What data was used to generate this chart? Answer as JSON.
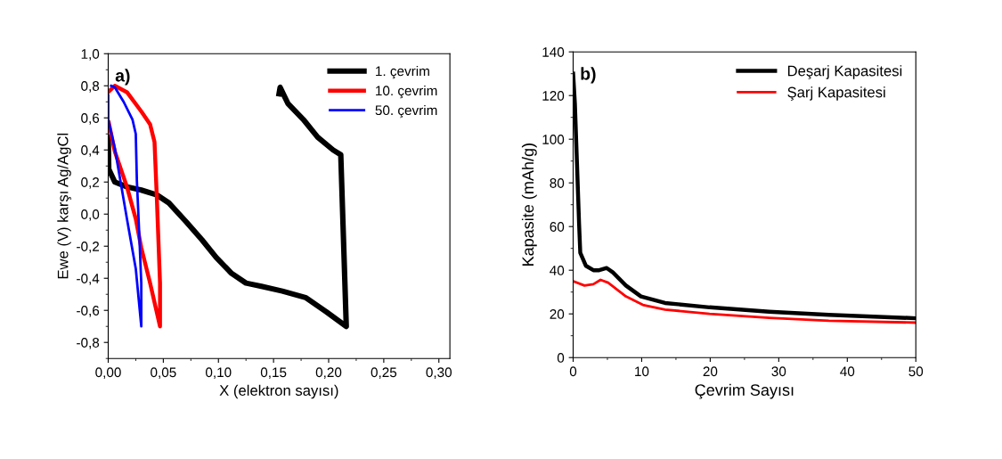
{
  "chart_data": [
    {
      "type": "line",
      "annotations": [
        "a)"
      ],
      "xlabel": "X (elektron sayısı)",
      "ylabel": "Ewe (V) karşı Ag/AgCl",
      "xlim": [
        0,
        0.31
      ],
      "ylim": [
        -0.9,
        1.0
      ],
      "xticks": [
        {
          "value": 0,
          "label": "0,00"
        },
        {
          "value": 0.05,
          "label": "0,05"
        },
        {
          "value": 0.1,
          "label": "0,10"
        },
        {
          "value": 0.15,
          "label": "0,15"
        },
        {
          "value": 0.2,
          "label": "0,20"
        },
        {
          "value": 0.25,
          "label": "0,25"
        },
        {
          "value": 0.3,
          "label": "0,30"
        }
      ],
      "yticks": [
        {
          "value": -0.8,
          "label": "-0,8"
        },
        {
          "value": -0.6,
          "label": "-0,6"
        },
        {
          "value": -0.4,
          "label": "-0,4"
        },
        {
          "value": -0.2,
          "label": "-0,2"
        },
        {
          "value": 0,
          "label": "0,0"
        },
        {
          "value": 0.2,
          "label": "0,2"
        },
        {
          "value": 0.4,
          "label": "0,4"
        },
        {
          "value": 0.6,
          "label": "0,6"
        },
        {
          "value": 0.8,
          "label": "0,8"
        },
        {
          "value": 1.0,
          "label": "1,0"
        }
      ],
      "legend": "top right",
      "grid": false,
      "marker": "none",
      "line_style": "solid",
      "series": [
        {
          "name": "1. çevrim",
          "color": "#000000",
          "x": [
            0,
            0.0005,
            0.006,
            0.017,
            0.03,
            0.044,
            0.055,
            0.071,
            0.085,
            0.098,
            0.112,
            0.125,
            0.139,
            0.158,
            0.179,
            0.198,
            0.216,
            0.211,
            0.204,
            0.19,
            0.177,
            0.163,
            0.156,
            0.155
          ],
          "values": [
            0.48,
            0.28,
            0.2,
            0.17,
            0.15,
            0.12,
            0.07,
            -0.05,
            -0.16,
            -0.27,
            -0.37,
            -0.43,
            -0.45,
            -0.48,
            -0.52,
            -0.61,
            -0.7,
            0.37,
            0.4,
            0.48,
            0.59,
            0.69,
            0.79,
            0.75
          ]
        },
        {
          "name": "10. çevrim",
          "color": "#ff0000",
          "x": [
            0,
            0.006,
            0.017,
            0.03,
            0.038,
            0.042,
            0.044,
            0.047,
            0.047,
            0.038,
            0.03,
            0.025,
            0.017,
            0.006,
            0.0005
          ],
          "values": [
            0.76,
            0.8,
            0.76,
            0.64,
            0.56,
            0.45,
            0.12,
            -0.43,
            -0.7,
            -0.43,
            -0.21,
            -0.03,
            0.17,
            0.39,
            0.57
          ]
        },
        {
          "name": "50. çevrim",
          "color": "#0000ff",
          "x": [
            0,
            0,
            0.006,
            0.017,
            0.025,
            0.03,
            0.03,
            0.028,
            0.026,
            0.025,
            0.022,
            0.014,
            0.006,
            0.0027
          ],
          "values": [
            0.74,
            0.59,
            0.41,
            -0.03,
            -0.34,
            -0.7,
            -0.43,
            -0.1,
            0.21,
            0.5,
            0.59,
            0.7,
            0.79,
            0.8
          ]
        }
      ]
    },
    {
      "type": "line",
      "annotations": [
        "b)"
      ],
      "xlabel": "Çevrim Sayısı",
      "ylabel": "Kapasite (mAh/g)",
      "xlim": [
        0,
        50
      ],
      "ylim": [
        0,
        140
      ],
      "xticks": [
        0,
        10,
        20,
        30,
        40,
        50
      ],
      "yticks": [
        0,
        20,
        40,
        60,
        80,
        100,
        120,
        140
      ],
      "legend": "top right",
      "grid": false,
      "marker": "none",
      "line_style": "solid",
      "series": [
        {
          "name": "Deşarj Kapasitesi",
          "color": "#000000",
          "x": [
            0,
            0.26,
            0.56,
            0.87,
            1.04,
            1.87,
            2.95,
            3.8,
            4.9,
            5.8,
            7.7,
            9.9,
            13.4,
            19.9,
            28.6,
            37.3,
            50
          ],
          "values": [
            130,
            116,
            89,
            61,
            48,
            42,
            40,
            40,
            41,
            39,
            33,
            28,
            25,
            23,
            21,
            19.6,
            18
          ]
        },
        {
          "name": "Şarj Kapasitesi",
          "color": "#ff0000",
          "x": [
            0,
            1.65,
            2.95,
            4.0,
            5.1,
            7.7,
            10.3,
            13.4,
            19.9,
            28.6,
            37.3,
            50
          ],
          "values": [
            35,
            33,
            33.6,
            35.6,
            34.3,
            28,
            24,
            22,
            20,
            18.2,
            16.9,
            16
          ]
        }
      ]
    }
  ]
}
